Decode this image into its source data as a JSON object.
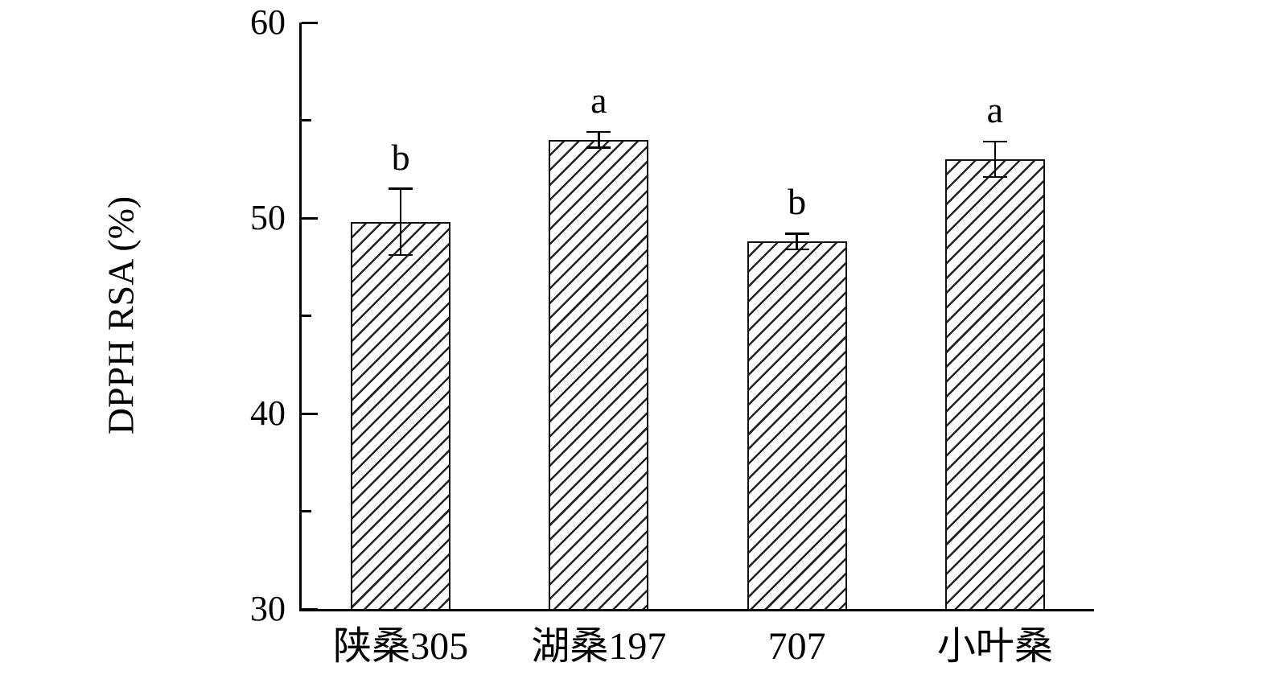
{
  "figure": {
    "background": "#ffffff",
    "ink_color": "#000000"
  },
  "chart_data": {
    "type": "bar",
    "title": "",
    "xlabel": "",
    "ylabel": "DPPH RSA (%)",
    "categories": [
      "陕桑305",
      "湖桑197",
      "707",
      "小叶桑"
    ],
    "values": [
      49.8,
      54.0,
      48.8,
      53.0
    ],
    "errors": [
      1.7,
      0.4,
      0.4,
      0.9
    ],
    "sig_letters": [
      "b",
      "a",
      "b",
      "a"
    ],
    "ylim": [
      30,
      60
    ],
    "yticks_major": [
      30,
      40,
      50,
      60
    ],
    "yticks_minor": [
      35,
      45,
      55
    ],
    "grid": false,
    "legend": "none",
    "bar_fill": "hatched-diagonal",
    "bar_color": "#1a1a1a"
  }
}
